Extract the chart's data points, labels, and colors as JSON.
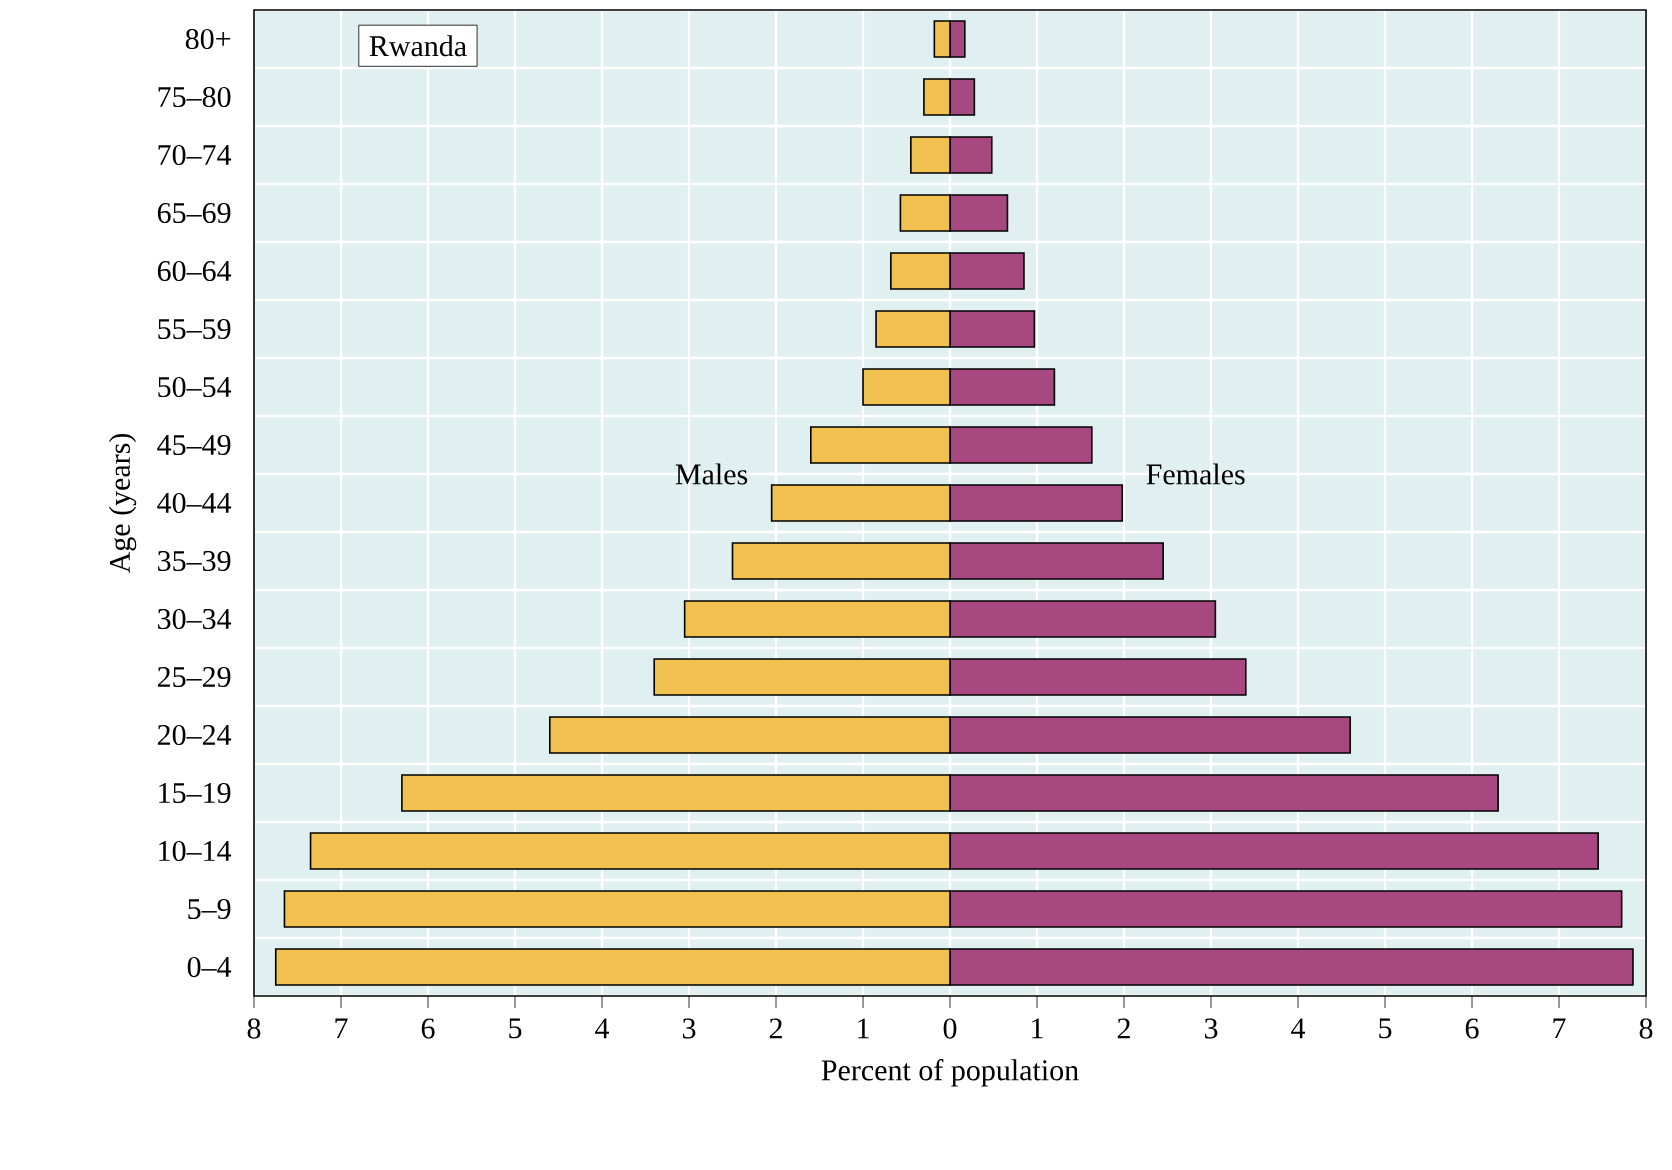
{
  "chart_data": {
    "type": "bar",
    "orientation": "horizontal",
    "categories": [
      "80+",
      "75–80",
      "70–74",
      "65–69",
      "60–64",
      "55–59",
      "50–54",
      "45–49",
      "40–44",
      "35–39",
      "30–34",
      "25–29",
      "20–24",
      "15–19",
      "10–14",
      "5–9",
      "0–4"
    ],
    "series": [
      {
        "name": "Males",
        "color": "#f0c050",
        "values": [
          -0.18,
          -0.3,
          -0.45,
          -0.57,
          -0.68,
          -0.85,
          -1.0,
          -1.6,
          -2.05,
          -2.5,
          -3.05,
          -3.4,
          -4.6,
          -6.3,
          -7.35,
          -7.65,
          -7.75
        ]
      },
      {
        "name": "Females",
        "color": "#a84880",
        "values": [
          0.17,
          0.28,
          0.48,
          0.66,
          0.85,
          0.97,
          1.2,
          1.63,
          1.98,
          2.45,
          3.05,
          3.4,
          4.6,
          6.3,
          7.45,
          7.72,
          7.85
        ]
      }
    ],
    "xlabel": "Percent of population",
    "ylabel": "Age (years)",
    "xlim": [
      -8,
      8
    ],
    "xticks": [
      {
        "value": -8,
        "label": "8"
      },
      {
        "value": -7,
        "label": "7"
      },
      {
        "value": -6,
        "label": "6"
      },
      {
        "value": -5,
        "label": "5"
      },
      {
        "value": -4,
        "label": "4"
      },
      {
        "value": -3,
        "label": "3"
      },
      {
        "value": -2,
        "label": "2"
      },
      {
        "value": -1,
        "label": "1"
      },
      0,
      1,
      2,
      3,
      4,
      5,
      6,
      7,
      8
    ],
    "annotations": [
      "Rwanda"
    ],
    "stacked": true,
    "grid": true
  }
}
